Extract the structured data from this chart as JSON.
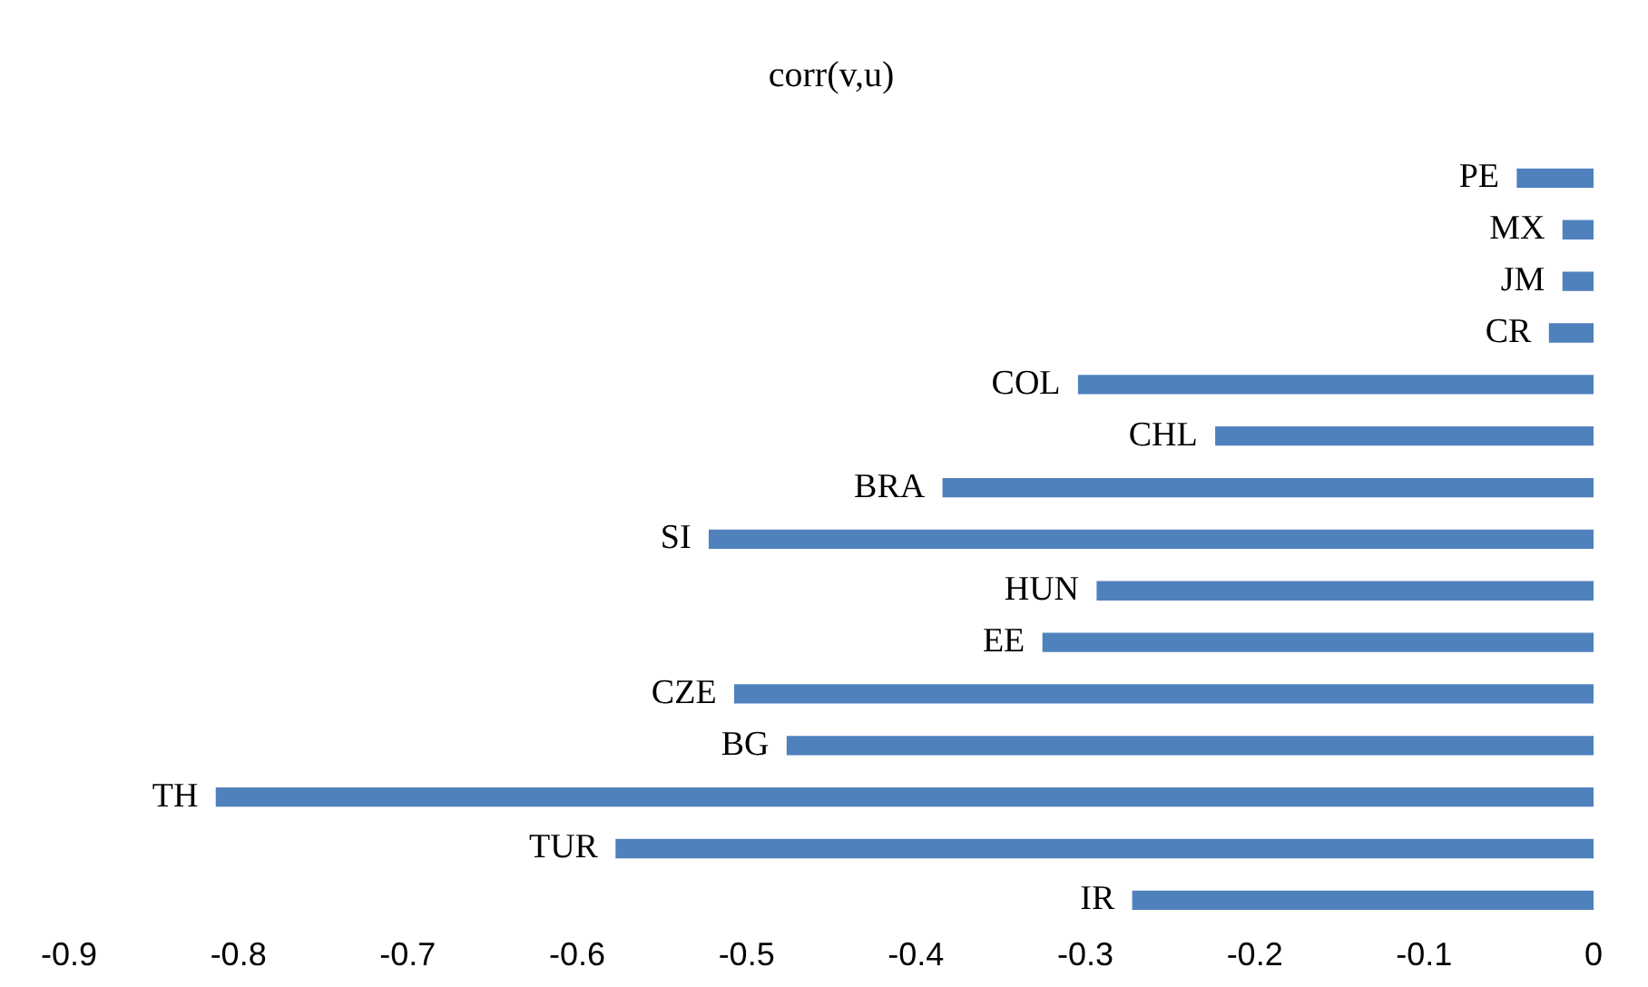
{
  "chart_data": {
    "type": "bar",
    "orientation": "horizontal",
    "title": "corr(v,u)",
    "categories": [
      "PE",
      "MX",
      "JM",
      "CR",
      "COL",
      "CHL",
      "BRA",
      "SI",
      "HUN",
      "EE",
      "CZE",
      "BG",
      "TH",
      "TUR",
      "IR"
    ],
    "values": [
      -0.045,
      -0.018,
      -0.018,
      -0.026,
      -0.304,
      -0.223,
      -0.384,
      -0.522,
      -0.293,
      -0.325,
      -0.507,
      -0.476,
      -0.813,
      -0.577,
      -0.272
    ],
    "color": "#4f81bd",
    "xlim": [
      -0.9,
      0
    ],
    "xticks": [
      -0.9,
      -0.8,
      -0.7,
      -0.6,
      -0.5,
      -0.4,
      -0.3,
      -0.2,
      -0.1,
      0
    ],
    "grid": false,
    "legend": false
  }
}
